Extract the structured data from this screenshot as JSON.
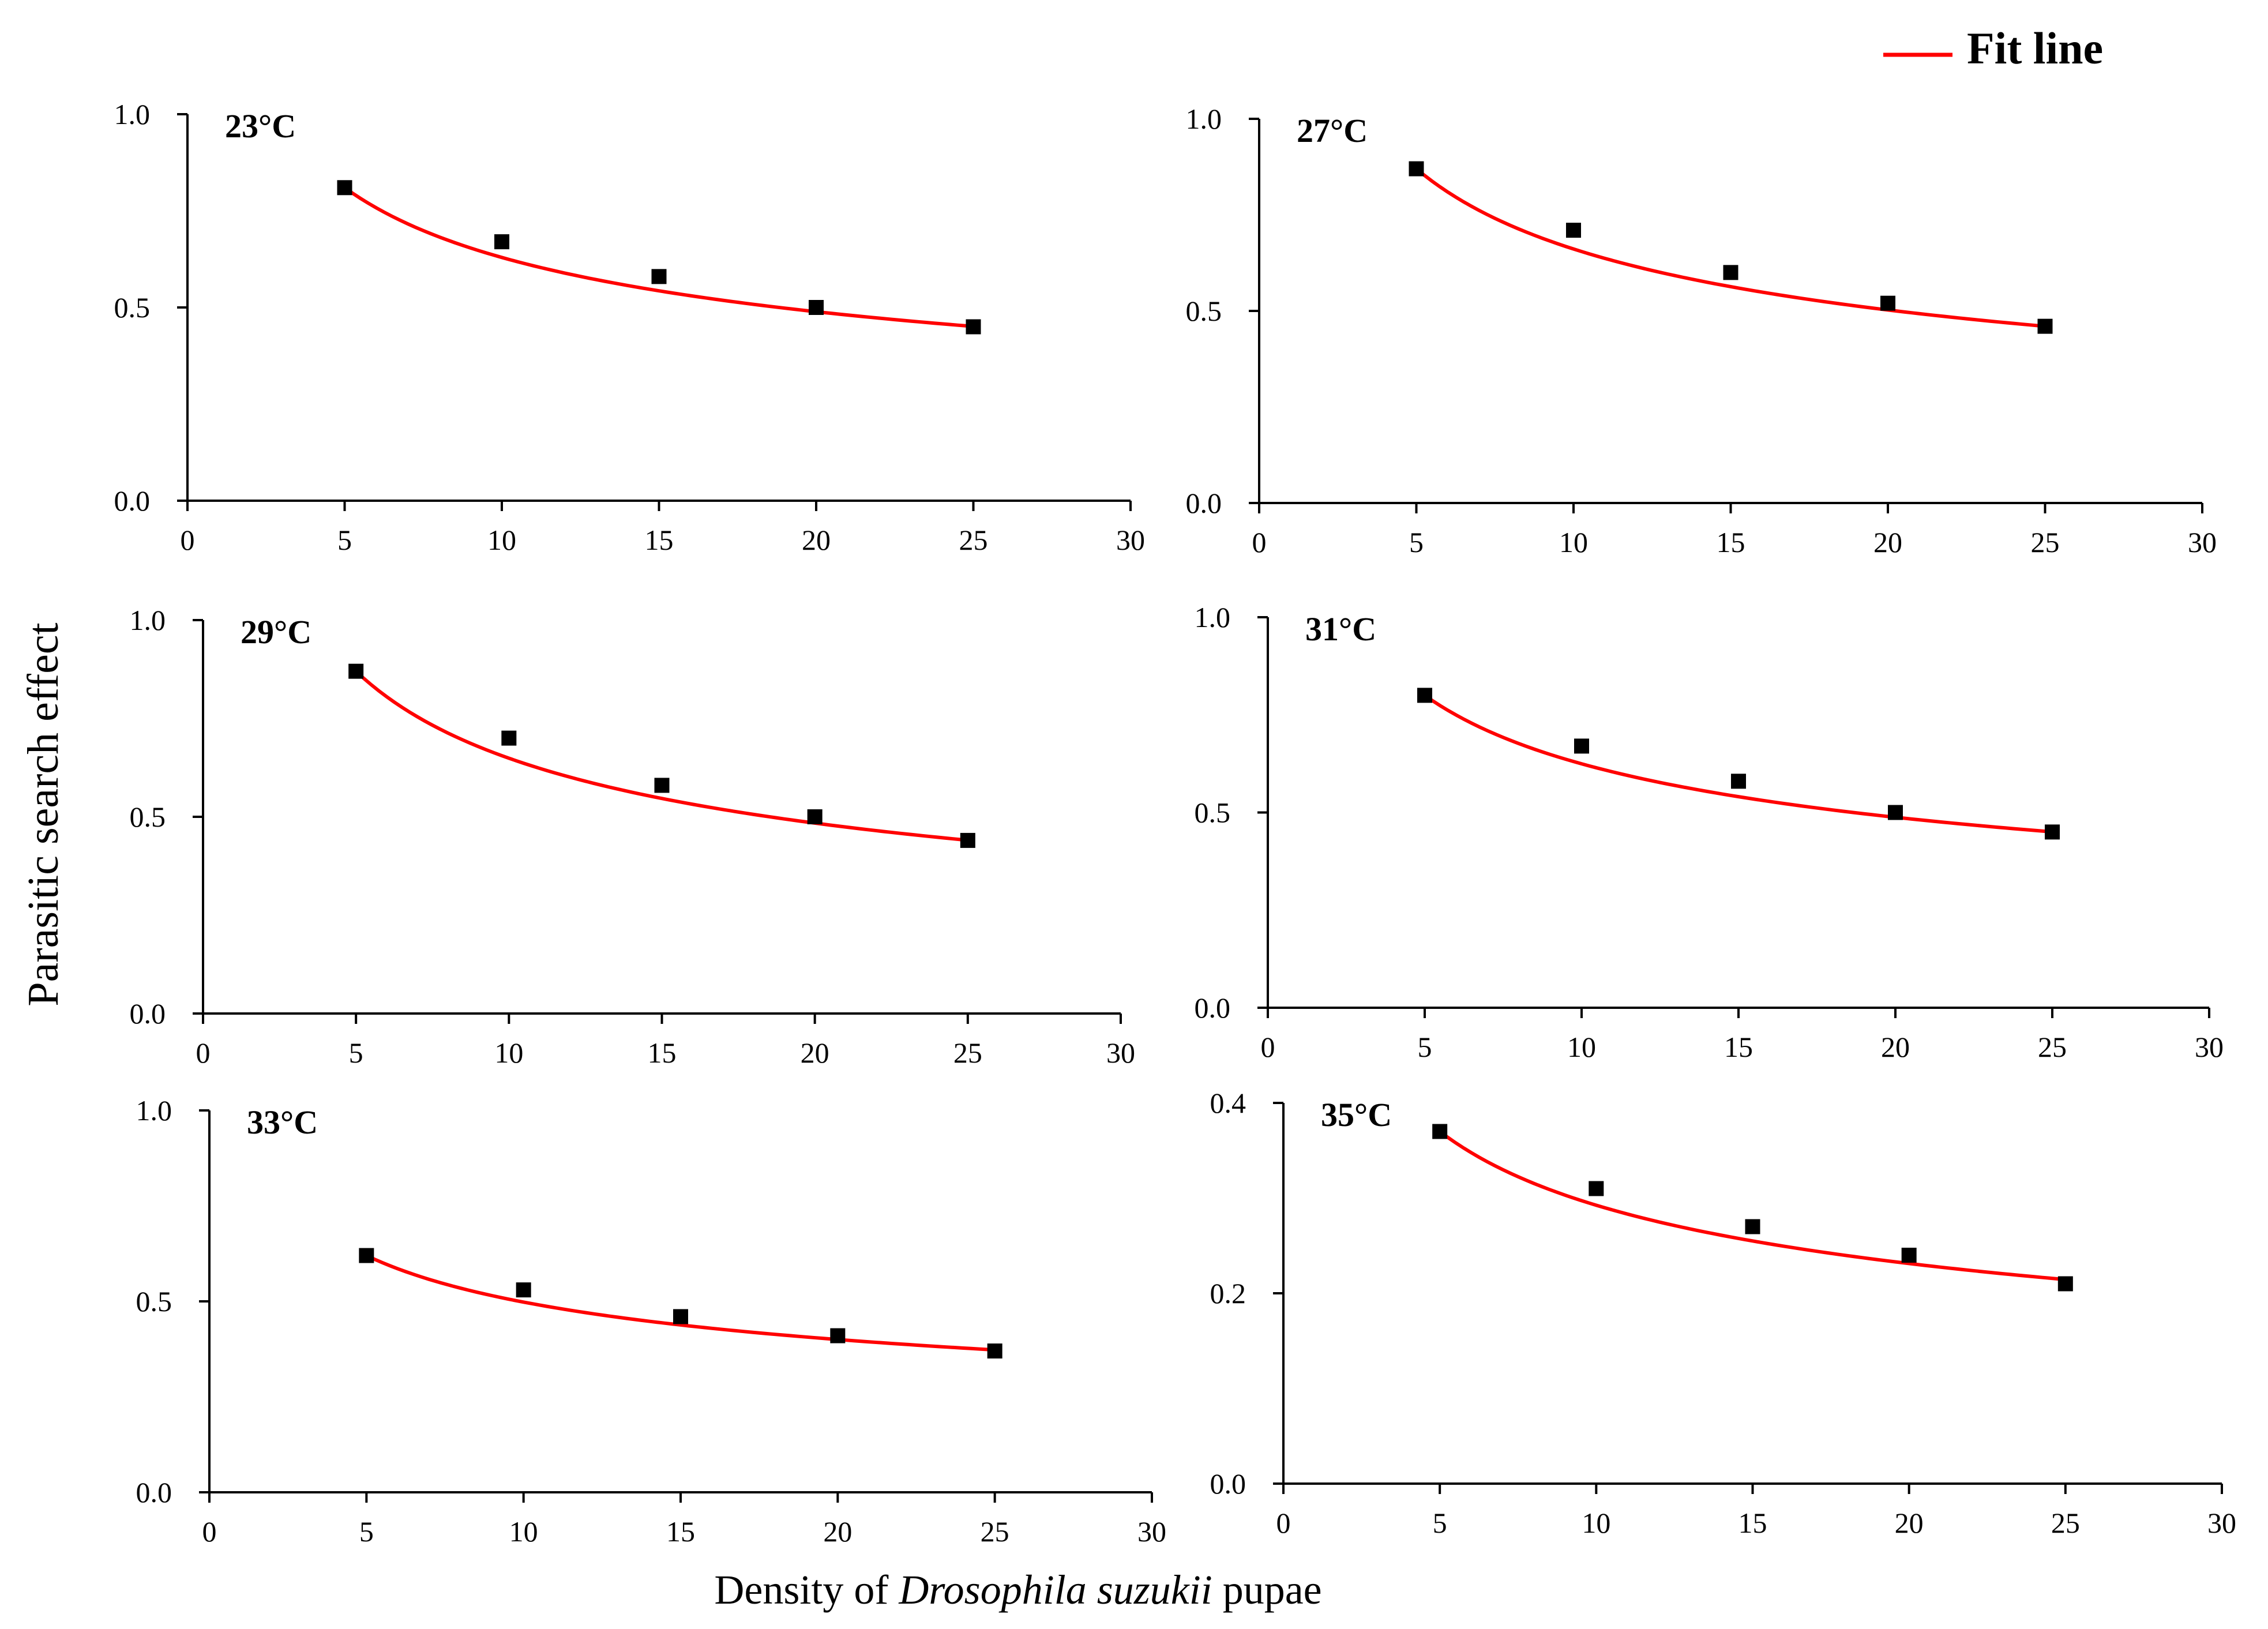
{
  "legend": {
    "label": "Fit line",
    "color": "#ff0000",
    "position": "top-right"
  },
  "ylabel": "Parasitic search effect",
  "xlabel": {
    "prefix": "Density of ",
    "italic": "Drosophila suzukii",
    "suffix": " pupae"
  },
  "colors": {
    "fit": "#ff0000",
    "marker": "#000000",
    "axis": "#000000"
  },
  "chart_data": [
    {
      "type": "scatter",
      "title": "23°C",
      "x": [
        5,
        10,
        15,
        20,
        25
      ],
      "y": [
        0.81,
        0.67,
        0.58,
        0.5,
        0.45
      ],
      "xlim": [
        0,
        30
      ],
      "ylim": [
        0,
        1.0
      ],
      "xticks": [
        0,
        5,
        10,
        15,
        20,
        25,
        30
      ],
      "yticks": [
        0.0,
        0.5,
        1.0
      ],
      "xtick_labels": [
        "0",
        "5",
        "10",
        "15",
        "20",
        "25",
        "30"
      ],
      "ytick_labels": [
        "0.0",
        "0.5",
        "1.0"
      ],
      "fit": {
        "a": 0.81,
        "b": 0.364
      }
    },
    {
      "type": "scatter",
      "title": "27°C",
      "x": [
        5,
        10,
        15,
        20,
        25
      ],
      "y": [
        0.87,
        0.71,
        0.6,
        0.52,
        0.46
      ],
      "xlim": [
        0,
        30
      ],
      "ylim": [
        0,
        1.0
      ],
      "xticks": [
        0,
        5,
        10,
        15,
        20,
        25,
        30
      ],
      "yticks": [
        0.0,
        0.5,
        1.0
      ],
      "xtick_labels": [
        "0",
        "5",
        "10",
        "15",
        "20",
        "25",
        "30"
      ],
      "ytick_labels": [
        "0.0",
        "0.5",
        "1.0"
      ],
      "fit": {
        "a": 0.87,
        "b": 0.396
      }
    },
    {
      "type": "scatter",
      "title": "29°C",
      "x": [
        5,
        10,
        15,
        20,
        25
      ],
      "y": [
        0.87,
        0.7,
        0.58,
        0.5,
        0.44
      ],
      "xlim": [
        0,
        30
      ],
      "ylim": [
        0,
        1.0
      ],
      "xticks": [
        0,
        5,
        10,
        15,
        20,
        25,
        30
      ],
      "yticks": [
        0.0,
        0.5,
        1.0
      ],
      "xtick_labels": [
        "0",
        "5",
        "10",
        "15",
        "20",
        "25",
        "30"
      ],
      "ytick_labels": [
        "0.0",
        "0.5",
        "1.0"
      ],
      "fit": {
        "a": 0.87,
        "b": 0.423
      }
    },
    {
      "type": "scatter",
      "title": "31°C",
      "x": [
        5,
        10,
        15,
        20,
        25
      ],
      "y": [
        0.8,
        0.67,
        0.58,
        0.5,
        0.45
      ],
      "xlim": [
        0,
        30
      ],
      "ylim": [
        0,
        1.0
      ],
      "xticks": [
        0,
        5,
        10,
        15,
        20,
        25,
        30
      ],
      "yticks": [
        0.0,
        0.5,
        1.0
      ],
      "xtick_labels": [
        "0",
        "5",
        "10",
        "15",
        "20",
        "25",
        "30"
      ],
      "ytick_labels": [
        "0.0",
        "0.5",
        "1.0"
      ],
      "fit": {
        "a": 0.8,
        "b": 0.357
      }
    },
    {
      "type": "scatter",
      "title": "33°C",
      "x": [
        5,
        10,
        15,
        20,
        25
      ],
      "y": [
        0.62,
        0.53,
        0.46,
        0.41,
        0.37
      ],
      "xlim": [
        0,
        30
      ],
      "ylim": [
        0,
        1.0
      ],
      "xticks": [
        0,
        5,
        10,
        15,
        20,
        25,
        30
      ],
      "yticks": [
        0.0,
        0.5,
        1.0
      ],
      "xtick_labels": [
        "0",
        "5",
        "10",
        "15",
        "20",
        "25",
        "30"
      ],
      "ytick_labels": [
        "0.0",
        "0.5",
        "1.0"
      ],
      "fit": {
        "a": 0.62,
        "b": 0.316
      }
    },
    {
      "type": "scatter",
      "title": "35°C",
      "x": [
        5,
        10,
        15,
        20,
        25
      ],
      "y": [
        0.37,
        0.31,
        0.27,
        0.24,
        0.21
      ],
      "xlim": [
        0,
        30
      ],
      "ylim": [
        0,
        0.4
      ],
      "xticks": [
        0,
        5,
        10,
        15,
        20,
        25,
        30
      ],
      "yticks": [
        0.0,
        0.2,
        0.4
      ],
      "xtick_labels": [
        "0",
        "5",
        "10",
        "15",
        "20",
        "25",
        "30"
      ],
      "ytick_labels": [
        "0.0",
        "0.2",
        "0.4"
      ],
      "fit": {
        "a": 0.37,
        "b": 0.339
      }
    }
  ]
}
